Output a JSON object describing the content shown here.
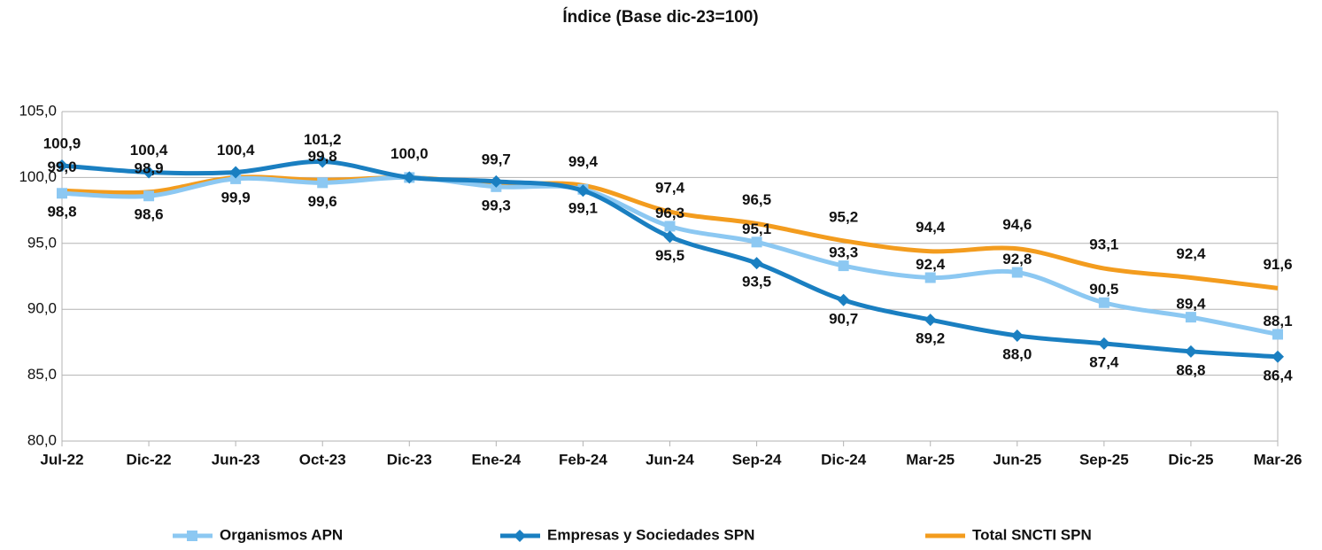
{
  "chart_data": {
    "type": "line",
    "title": "Índice (Base dic-23=100)",
    "categories": [
      "Jul-22",
      "Dic-22",
      "Jun-23",
      "Oct-23",
      "Dic-23",
      "Ene-24",
      "Feb-24",
      "Jun-24",
      "Sep-24",
      "Dic-24",
      "Mar-25",
      "Jun-25",
      "Sep-25",
      "Dic-25",
      "Mar-26"
    ],
    "ylim": [
      80,
      105
    ],
    "yticks": [
      {
        "value": 80,
        "label": "80,0"
      },
      {
        "value": 85,
        "label": "85,0"
      },
      {
        "value": 90,
        "label": "90,0"
      },
      {
        "value": 95,
        "label": "95,0"
      },
      {
        "value": 100,
        "label": "100,0"
      },
      {
        "value": 105,
        "label": "105,0"
      }
    ],
    "grid": true,
    "legend": "bottom",
    "series": [
      {
        "name": "Organismos APN",
        "color": "#8cc8f2",
        "marker": "square",
        "values": [
          98.8,
          98.6,
          99.9,
          99.6,
          100.0,
          99.3,
          99.1,
          96.3,
          95.1,
          93.3,
          92.4,
          92.8,
          90.5,
          89.4,
          88.1
        ],
        "value_labels": [
          "98,8",
          "98,6",
          "99,9",
          "99,6",
          null,
          "99,3",
          "99,1",
          "96,3",
          "95,1",
          "93,3",
          "92,4",
          "92,8",
          "90,5",
          "89,4",
          "88,1"
        ]
      },
      {
        "name": "Empresas y Sociedades SPN",
        "color": "#1a7fc1",
        "marker": "diamond",
        "values": [
          100.9,
          100.4,
          100.4,
          101.2,
          100.0,
          99.7,
          99.0,
          95.5,
          93.5,
          90.7,
          89.2,
          88.0,
          87.4,
          86.8,
          86.4
        ],
        "value_labels": [
          "100,9",
          "100,4",
          "100,4",
          "101,2",
          null,
          "99,7",
          null,
          "95,5",
          "93,5",
          "90,7",
          "89,2",
          "88,0",
          "87,4",
          "86,8",
          "86,4"
        ]
      },
      {
        "name": "Total SNCTI SPN",
        "color": "#f39c1e",
        "marker": "none",
        "values": [
          99.0,
          98.9,
          100.0,
          99.8,
          100.0,
          99.5,
          99.4,
          97.4,
          96.5,
          95.2,
          94.4,
          94.6,
          93.1,
          92.4,
          91.6
        ],
        "value_labels": [
          "99,0",
          "98,9",
          null,
          "99,8",
          "100,0",
          null,
          "99,4",
          "97,4",
          "96,5",
          "95,2",
          "94,4",
          "94,6",
          "93,1",
          "92,4",
          "91,6"
        ]
      }
    ]
  }
}
